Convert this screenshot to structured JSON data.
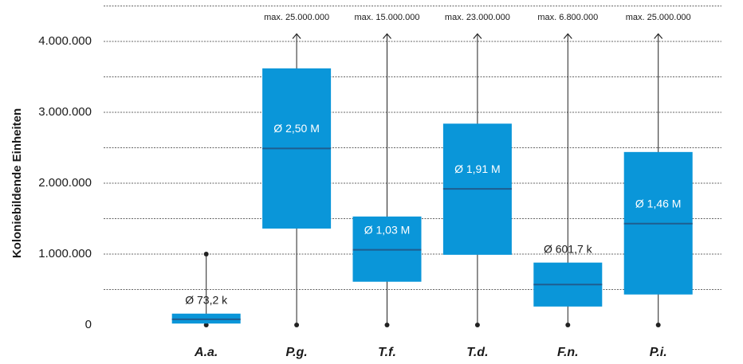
{
  "chart_data": {
    "type": "box",
    "y_label": "Koloniebildende Einheiten",
    "categories": [
      "A.a.",
      "P.g.",
      "T.f.",
      "T.d.",
      "F.n.",
      "P.i."
    ],
    "min": [
      0,
      0,
      0,
      0,
      0,
      0
    ],
    "q1": [
      20000,
      1360000,
      610000,
      990000,
      260000,
      430000
    ],
    "median": [
      80000,
      2490000,
      1060000,
      1920000,
      570000,
      1430000
    ],
    "q3": [
      160000,
      3620000,
      1530000,
      2840000,
      880000,
      2440000
    ],
    "max": [
      1000000,
      25000000,
      15000000,
      23000000,
      6800000,
      25000000
    ],
    "max_labels": [
      null,
      "max. 25.000.000",
      "max. 15.000.000",
      "max. 23.000.000",
      "max. 6.800.000",
      "max. 25.000.000"
    ],
    "mean": [
      73200,
      2500000,
      1030000,
      1910000,
      601700,
      1460000
    ],
    "mean_labels": [
      "Ø 73,2 k",
      "Ø 2,50 M",
      "Ø 1,03 M",
      "Ø 1,91 M",
      "Ø 601,7 k",
      "Ø 1,46 M"
    ],
    "ylim": [
      0,
      4500000
    ],
    "yticks": [
      0,
      {
        "value": 1000000,
        "label": "1.000.000"
      },
      {
        "value": 2000000,
        "label": "2.000.000"
      },
      {
        "value": 3000000,
        "label": "3.000.000"
      },
      {
        "value": 4000000,
        "label": "4.000.000"
      }
    ],
    "minor_yticks": [
      500000,
      1500000,
      2500000,
      3500000,
      4500000
    ],
    "grid": true,
    "color": "#0a96d9",
    "median_color": "#1f5d8f"
  }
}
